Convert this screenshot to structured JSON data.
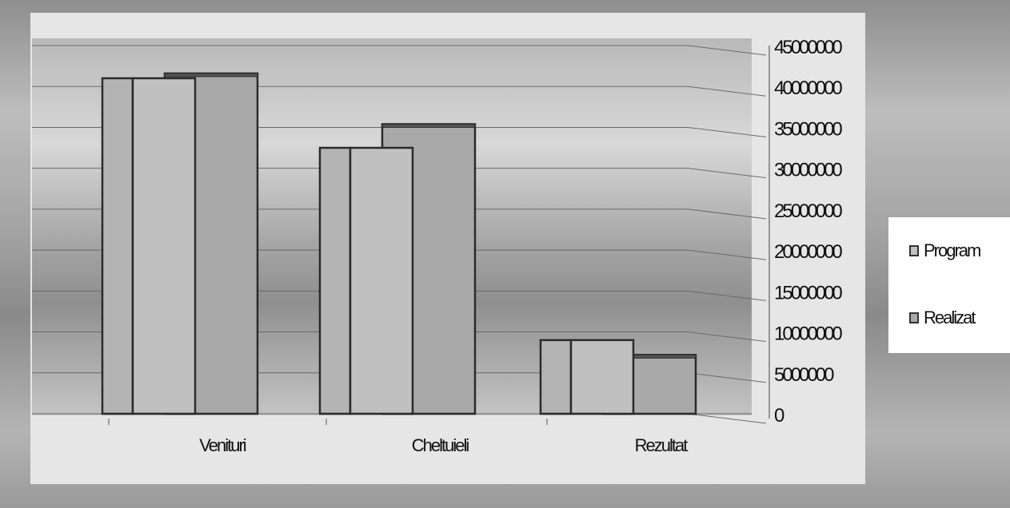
{
  "chart_data": {
    "type": "bar",
    "categories": [
      "Venituri",
      "Cheltuieli",
      "Rezultat"
    ],
    "series": [
      {
        "name": "Program",
        "values": [
          41000000,
          32500000,
          9000000
        ]
      },
      {
        "name": "Realizat",
        "values": [
          41200000,
          35000000,
          6800000
        ]
      }
    ],
    "yticks": [
      "0",
      "5000000",
      "10000000",
      "15000000",
      "20000000",
      "25000000",
      "30000000",
      "35000000",
      "40000000",
      "45000000"
    ],
    "ylim": [
      0,
      45000000
    ],
    "y_axis_side": "right",
    "grid": true,
    "legend_position": "right",
    "colors": {
      "program": "#c0c0c0",
      "realizat": "#a9a9a9",
      "outline": "#2b2b2b",
      "plot_frame": "#e6e6e6"
    }
  }
}
